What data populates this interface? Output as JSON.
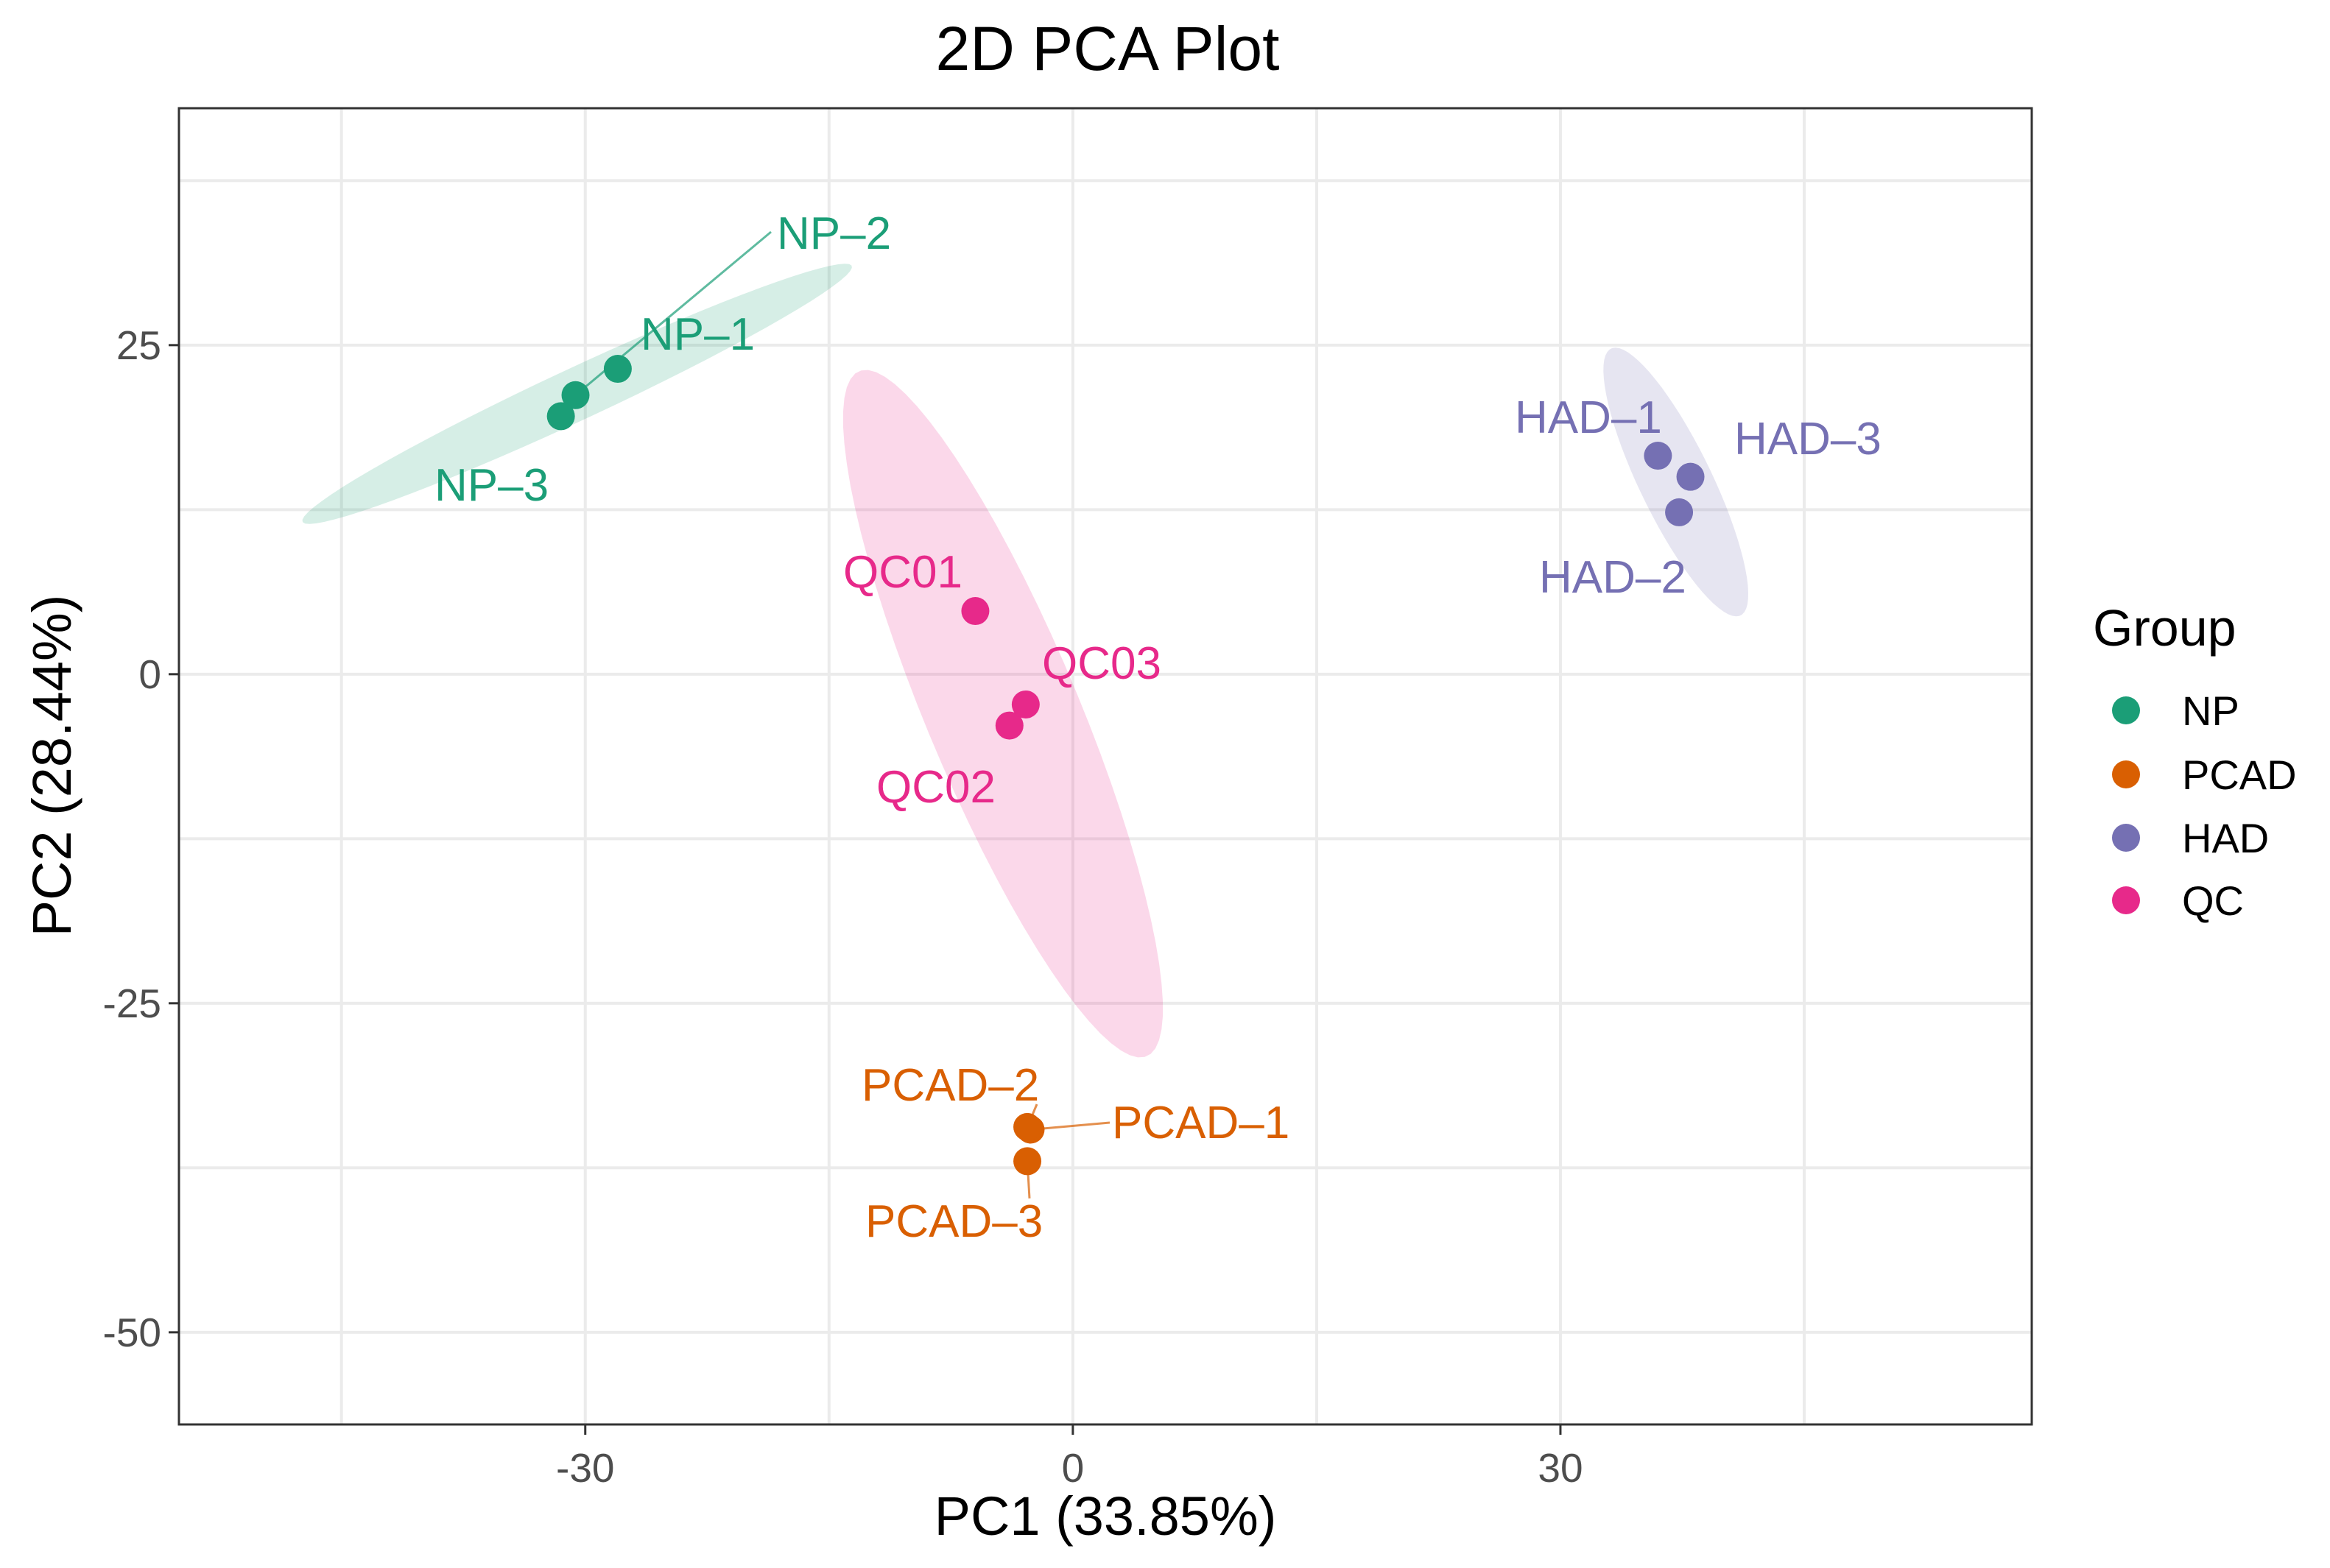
{
  "chart_data": {
    "type": "scatter",
    "title": "2D PCA Plot",
    "xlabel": "PC1 (33.85%)",
    "ylabel": "PC2 (28.44%)",
    "xlim": [
      -55,
      59
    ],
    "ylim": [
      -57,
      43
    ],
    "xticks": [
      -30,
      0,
      30
    ],
    "yticks": [
      25,
      0,
      -25,
      -50
    ],
    "grid": true,
    "legend": {
      "title": "Group",
      "position": "right",
      "entries": [
        "NP",
        "PCAD",
        "HAD",
        "QC"
      ]
    },
    "groups": [
      {
        "name": "NP",
        "color": "#1b9e77",
        "points": [
          {
            "label": "NP–1",
            "x": -28,
            "y": 23.2
          },
          {
            "label": "NP–2",
            "x": -30.6,
            "y": 21.2
          },
          {
            "label": "NP–3",
            "x": -31.5,
            "y": 19.6
          }
        ],
        "ellipse": {
          "cx": -30.5,
          "cy": 21.3,
          "rx": 19.5,
          "ry": 1.9,
          "angle": 30
        }
      },
      {
        "name": "PCAD",
        "color": "#d95f02",
        "points": [
          {
            "label": "PCAD–1",
            "x": -2.6,
            "y": -34.6
          },
          {
            "label": "PCAD–2",
            "x": -2.8,
            "y": -34.4
          },
          {
            "label": "PCAD–3",
            "x": -2.8,
            "y": -37
          }
        ]
      },
      {
        "name": "HAD",
        "color": "#7570b3",
        "points": [
          {
            "label": "HAD–1",
            "x": 36,
            "y": 16.6
          },
          {
            "label": "HAD–2",
            "x": 37.3,
            "y": 12.3
          },
          {
            "label": "HAD–3",
            "x": 38,
            "y": 15
          }
        ],
        "ellipse": {
          "cx": 37.1,
          "cy": 14.6,
          "rx": 10.9,
          "ry": 2.3,
          "angle": -69
        }
      },
      {
        "name": "QC",
        "color": "#e7298a",
        "points": [
          {
            "label": "QC01",
            "x": -6,
            "y": 4.8
          },
          {
            "label": "QC02",
            "x": -3.9,
            "y": -3.9
          },
          {
            "label": "QC03",
            "x": -2.9,
            "y": -2.3
          }
        ],
        "ellipse": {
          "cx": -4.3,
          "cy": -3,
          "rx": 27.5,
          "ry": 4.8,
          "angle": -71.5
        }
      }
    ]
  }
}
